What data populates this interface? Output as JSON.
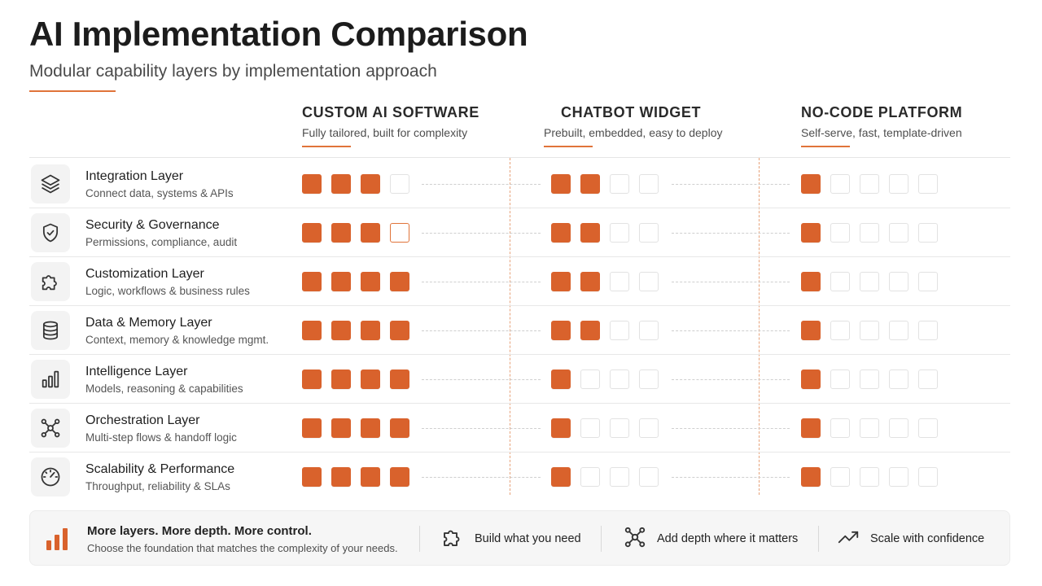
{
  "title": "AI Implementation Comparison",
  "subtitle": "Modular capability layers by implementation approach",
  "columns": [
    {
      "name": "CUSTOM AI SOFTWARE",
      "desc": "Fully tailored, built for complexity",
      "total": 4
    },
    {
      "name": "CHATBOT WIDGET",
      "desc": "Prebuilt, embedded, easy to deploy",
      "total": 4
    },
    {
      "name": "NO-CODE PLATFORM",
      "desc": "Self-serve, fast, template-driven",
      "total": 5
    }
  ],
  "rows": [
    {
      "label": "Integration Layer",
      "sub": "Connect data, systems & APIs",
      "icon": "layers-icon",
      "scores": [
        3,
        2,
        1
      ]
    },
    {
      "label": "Security & Governance",
      "sub": "Permissions, compliance, audit",
      "icon": "shield-check-icon",
      "scores": [
        3,
        2,
        1
      ],
      "highlight": [
        3,
        null,
        null
      ]
    },
    {
      "label": "Customization Layer",
      "sub": "Logic, workflows & business rules",
      "icon": "puzzle-icon",
      "scores": [
        4,
        2,
        1
      ]
    },
    {
      "label": "Data & Memory Layer",
      "sub": "Context, memory & knowledge mgmt.",
      "icon": "database-icon",
      "scores": [
        4,
        2,
        1
      ]
    },
    {
      "label": "Intelligence Layer",
      "sub": "Models, reasoning & capabilities",
      "icon": "bar-chart-icon",
      "scores": [
        4,
        1,
        1
      ]
    },
    {
      "label": "Orchestration Layer",
      "sub": "Multi-step flows & handoff logic",
      "icon": "network-icon",
      "scores": [
        4,
        1,
        1
      ]
    },
    {
      "label": "Scalability & Performance",
      "sub": "Throughput, reliability & SLAs",
      "icon": "gauge-icon",
      "scores": [
        4,
        1,
        1
      ]
    }
  ],
  "footer": {
    "title": "More layers. More depth. More control.",
    "sub": "Choose the foundation that matches the complexity of your needs.",
    "items": [
      {
        "label": "Build what you need",
        "icon": "puzzle-icon"
      },
      {
        "label": "Add depth where it matters",
        "icon": "network-icon"
      },
      {
        "label": "Scale with confidence",
        "icon": "trend-up-icon"
      }
    ]
  },
  "colors": {
    "accent": "#d9622c",
    "accent_light": "#e0743a"
  }
}
